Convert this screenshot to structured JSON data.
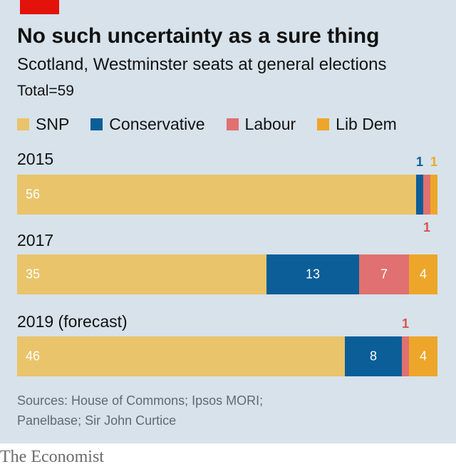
{
  "header": {
    "title": "No such uncertainty as a sure thing",
    "subtitle": "Scotland, Westminster seats at general elections",
    "total": "Total=59"
  },
  "colors": {
    "panel": "#d7e2ea",
    "accent": "#e3120b",
    "SNP": "#e9c46a",
    "Conservative": "#0b5e98",
    "Labour": "#e17070",
    "Lib Dem": "#eea62a"
  },
  "chart_data": {
    "type": "bar",
    "orientation": "horizontal-stacked",
    "title": "No such uncertainty as a sure thing",
    "subtitle": "Scotland, Westminster seats at general elections",
    "total": 59,
    "categories": [
      "2015",
      "2017",
      "2019 (forecast)"
    ],
    "series": [
      {
        "name": "SNP",
        "values": [
          56,
          35,
          46
        ]
      },
      {
        "name": "Conservative",
        "values": [
          1,
          13,
          8
        ]
      },
      {
        "name": "Labour",
        "values": [
          1,
          7,
          1
        ]
      },
      {
        "name": "Lib Dem",
        "values": [
          1,
          4,
          4
        ]
      }
    ],
    "xlim": [
      0,
      59
    ],
    "legend": "top",
    "grid": false
  },
  "sources": {
    "line1": "Sources: House of Commons; Ipsos MORI;",
    "line2": "Panelbase; Sir John Curtice"
  },
  "brand": "The Economist"
}
